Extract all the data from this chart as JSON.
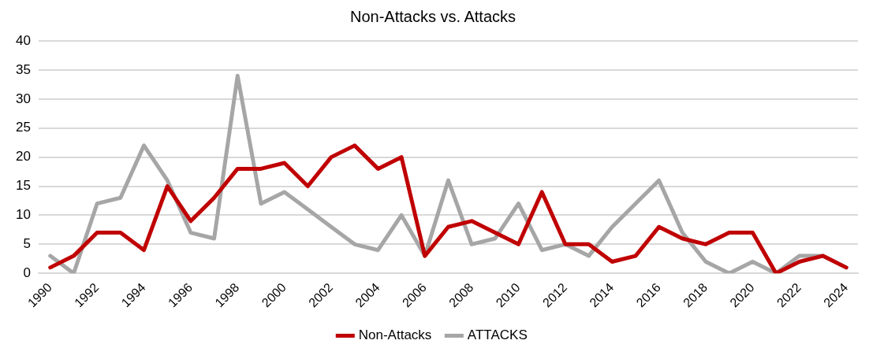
{
  "chart_data": {
    "type": "line",
    "title": "Non-Attacks vs. Attacks",
    "categories": [
      "1990",
      null,
      "1992",
      null,
      "1994",
      null,
      "1996",
      null,
      "1998",
      null,
      "2000",
      null,
      "2002",
      null,
      "2004",
      null,
      "2006",
      null,
      "2008",
      null,
      "2010",
      null,
      "2012",
      null,
      "2014",
      null,
      "2016",
      null,
      "2018",
      null,
      "2020",
      null,
      "2022",
      null,
      "2024"
    ],
    "series": [
      {
        "name": "Non-Attacks",
        "color": "#c00000",
        "values": [
          1,
          3,
          7,
          7,
          4,
          15,
          9,
          13,
          18,
          18,
          19,
          15,
          20,
          22,
          18,
          20,
          3,
          8,
          9,
          7,
          5,
          14,
          5,
          5,
          2,
          3,
          8,
          6,
          5,
          7,
          7,
          0,
          2,
          3,
          1
        ]
      },
      {
        "name": "ATTACKS",
        "color": "#a6a6a6",
        "values": [
          3,
          0,
          12,
          13,
          22,
          16,
          7,
          6,
          34,
          12,
          14,
          11,
          8,
          5,
          4,
          10,
          3,
          16,
          5,
          6,
          12,
          4,
          5,
          3,
          8,
          12,
          16,
          7,
          2,
          0,
          2,
          0,
          3,
          3,
          1
        ]
      }
    ],
    "ylim": [
      0,
      40
    ],
    "yticks": [
      0,
      5,
      10,
      15,
      20,
      25,
      30,
      35,
      40
    ],
    "grid": "y",
    "legend": "bottom",
    "marker": "none",
    "line_style": "solid"
  }
}
